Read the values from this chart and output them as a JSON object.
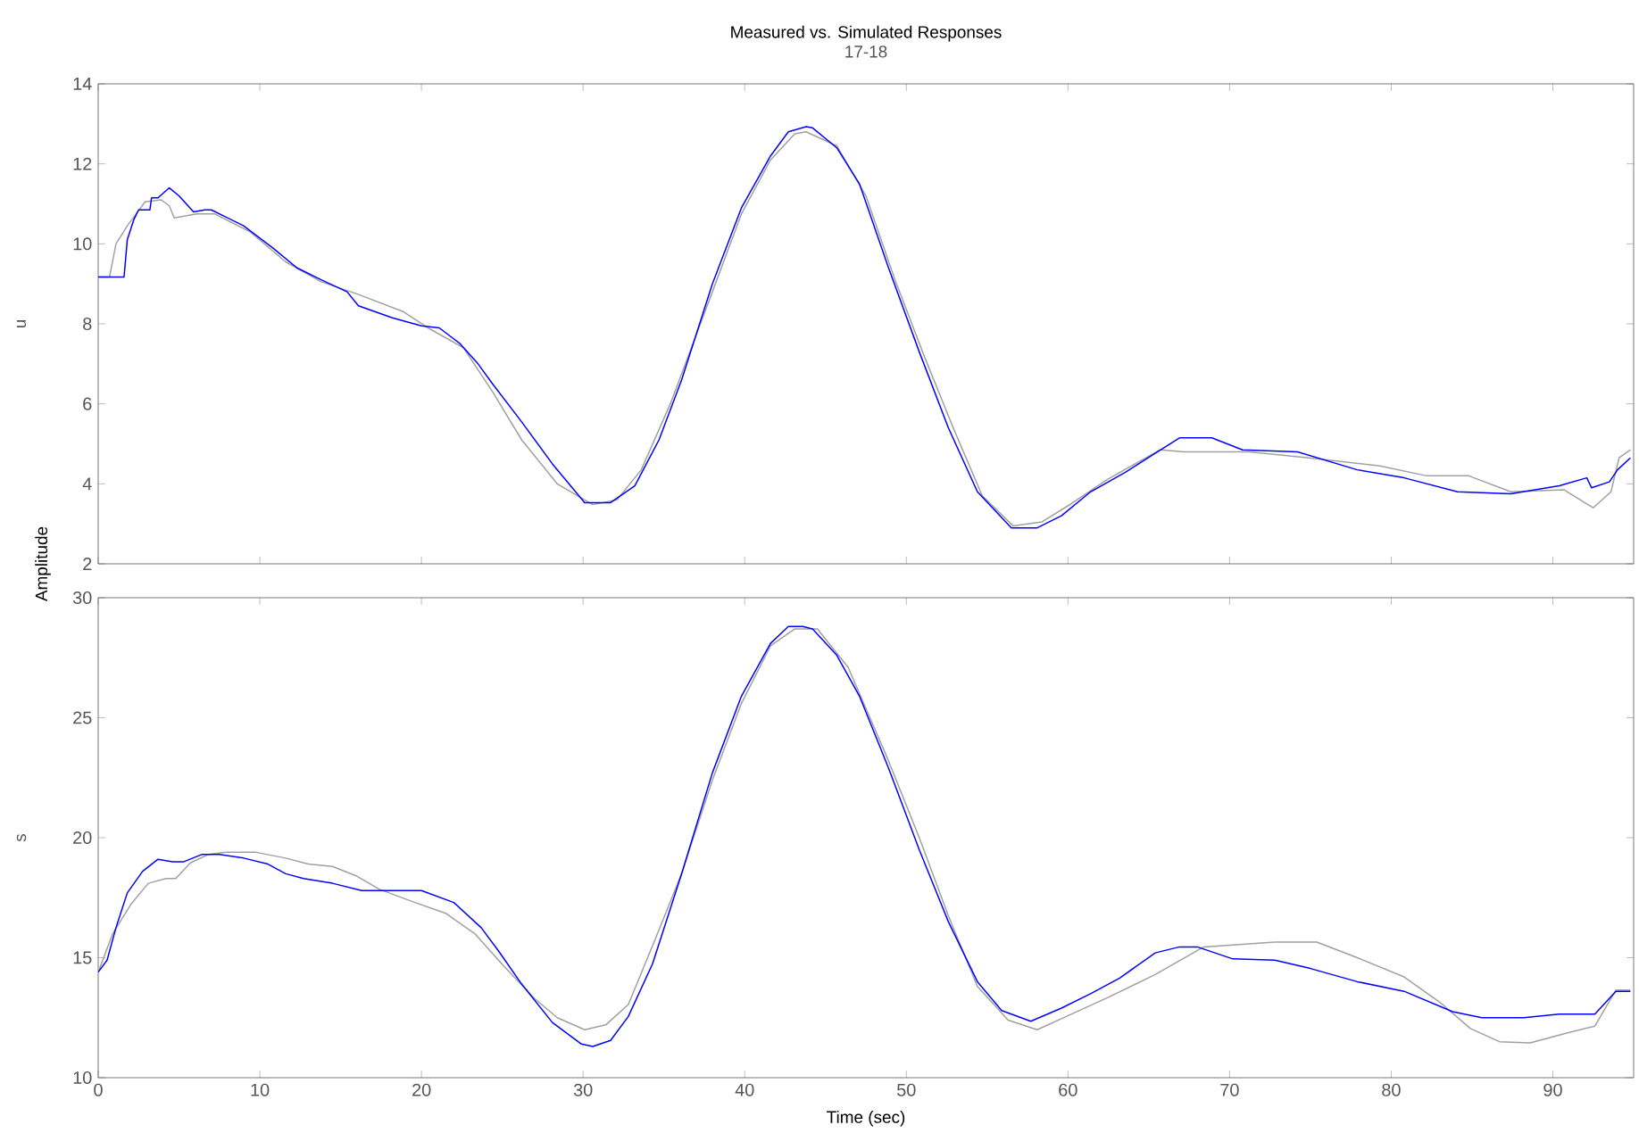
{
  "chart_data": [
    {
      "type": "line",
      "title": "Measured vs. Simulated Responses",
      "subtitle": "17-18",
      "ylabel": "u",
      "annotations": [
        "Amplitude"
      ],
      "xlim": [
        0,
        95
      ],
      "xticks": [
        0,
        10,
        20,
        30,
        40,
        50,
        60,
        70,
        80,
        90
      ],
      "ylim": [
        2,
        14
      ],
      "yticks": [
        2,
        4,
        6,
        8,
        10,
        12,
        14
      ],
      "tick_labels": "y",
      "line_style": "solid",
      "marker": "none",
      "series": [
        {
          "color": "#a0a0a0",
          "x": [
            0,
            0.7,
            1.1,
            1.8,
            2.9,
            3.9,
            4.4,
            4.7,
            6.1,
            7.2,
            9.4,
            11.6,
            13.8,
            16,
            18.9,
            20.4,
            22.6,
            24.4,
            26.2,
            28.4,
            30.6,
            32.1,
            33.6,
            35.4,
            38,
            39.8,
            41.6,
            43.1,
            43.8,
            45.7,
            47.5,
            49.3,
            51.1,
            52.9,
            54.7,
            56.6,
            58.4,
            60.2,
            62.4,
            65.7,
            67.2,
            71.2,
            74.9,
            79.3,
            82.2,
            84.8,
            87.4,
            90.7,
            92.5,
            93.6,
            94.1,
            94.8
          ],
          "values": [
            9.17,
            9.17,
            10.0,
            10.45,
            11.05,
            11.1,
            10.95,
            10.65,
            10.75,
            10.75,
            10.3,
            9.55,
            9.05,
            8.75,
            8.3,
            7.9,
            7.4,
            6.3,
            5.1,
            4.0,
            3.48,
            3.6,
            4.35,
            6.0,
            8.8,
            10.75,
            12.1,
            12.75,
            12.8,
            12.45,
            11.2,
            9.1,
            7.2,
            5.4,
            3.7,
            2.95,
            3.05,
            3.5,
            4.1,
            4.85,
            4.8,
            4.8,
            4.65,
            4.45,
            4.2,
            4.2,
            3.8,
            3.85,
            3.4,
            3.8,
            4.65,
            4.85
          ]
        },
        {
          "color": "#0000ff",
          "x": [
            0,
            1.6,
            1.8,
            2.2,
            2.5,
            3.2,
            3.3,
            3.7,
            4.4,
            5,
            5.9,
            6.6,
            7.0,
            9,
            10.8,
            12.3,
            13.8,
            15.4,
            16.1,
            18.2,
            20,
            21.1,
            22.4,
            23.5,
            24.4,
            26.2,
            28.1,
            30.1,
            31.7,
            33.2,
            34.7,
            36.1,
            38,
            39.8,
            41.6,
            42.7,
            43.8,
            44.2,
            45.7,
            47.1,
            48.9,
            50.8,
            52.6,
            54.4,
            56.5,
            58.1,
            59.6,
            61.4,
            63.6,
            66.9,
            68.9,
            70.8,
            74.2,
            77.9,
            80.8,
            84.1,
            87.4,
            90.4,
            92.1,
            92.4,
            93.5,
            94,
            94.8
          ],
          "values": [
            9.17,
            9.17,
            10.1,
            10.6,
            10.85,
            10.85,
            11.15,
            11.15,
            11.4,
            11.2,
            10.8,
            10.85,
            10.85,
            10.45,
            9.9,
            9.4,
            9.1,
            8.8,
            8.45,
            8.15,
            7.95,
            7.9,
            7.5,
            7.0,
            6.5,
            5.55,
            4.5,
            3.53,
            3.53,
            3.95,
            5.1,
            6.6,
            9.0,
            10.9,
            12.2,
            12.8,
            12.93,
            12.9,
            12.4,
            11.5,
            9.4,
            7.3,
            5.4,
            3.8,
            2.9,
            2.9,
            3.2,
            3.8,
            4.3,
            5.15,
            5.15,
            4.85,
            4.8,
            4.35,
            4.15,
            3.8,
            3.75,
            3.95,
            4.15,
            3.9,
            4.05,
            4.35,
            4.65
          ]
        }
      ]
    },
    {
      "type": "line",
      "xlabel": "Time (sec)",
      "ylabel": "s",
      "xlim": [
        0,
        95
      ],
      "xticks": [
        0,
        10,
        20,
        30,
        40,
        50,
        60,
        70,
        80,
        90
      ],
      "ylim": [
        10,
        30
      ],
      "yticks": [
        10,
        15,
        20,
        25,
        30
      ],
      "line_style": "solid",
      "marker": "none",
      "series": [
        {
          "color": "#a0a0a0",
          "x": [
            0,
            0.9,
            2,
            3.1,
            4.2,
            4.8,
            5.7,
            6.8,
            7.9,
            9.7,
            11.6,
            13,
            14.5,
            16,
            17.4,
            19.6,
            21.5,
            23.3,
            25.1,
            27,
            28.4,
            30.1,
            31.4,
            32.8,
            34.3,
            36.1,
            38,
            39.8,
            41.6,
            43.1,
            44.5,
            46.4,
            48.9,
            50.8,
            52.6,
            54.4,
            56.3,
            58.1,
            59.9,
            62.5,
            65.4,
            68.4,
            70.6,
            72.8,
            75.4,
            77.9,
            80.8,
            83,
            84.9,
            86.7,
            88.6,
            90.8,
            92.6,
            93.9,
            94.8
          ],
          "values": [
            14.4,
            16.0,
            17.2,
            18.1,
            18.3,
            18.3,
            18.95,
            19.3,
            19.4,
            19.4,
            19.15,
            18.9,
            18.8,
            18.4,
            17.85,
            17.3,
            16.85,
            16.0,
            14.65,
            13.3,
            12.5,
            12.0,
            12.2,
            13.05,
            15.5,
            18.5,
            22.4,
            25.6,
            28.0,
            28.7,
            28.7,
            27.1,
            23.2,
            20.0,
            16.75,
            13.8,
            12.4,
            12.0,
            12.55,
            13.35,
            14.3,
            15.45,
            15.55,
            15.65,
            15.65,
            15.0,
            14.2,
            13.15,
            12.05,
            11.5,
            11.45,
            11.85,
            12.15,
            13.65,
            13.65
          ]
        },
        {
          "color": "#0000ff",
          "x": [
            0,
            0.55,
            1.1,
            1.8,
            2.75,
            3.7,
            4.6,
            5.3,
            6.4,
            7.5,
            9,
            10.5,
            11.6,
            12.7,
            14.5,
            16.3,
            20,
            22,
            23.7,
            24.8,
            26.2,
            28.1,
            29.9,
            30.6,
            31.7,
            32.8,
            34.3,
            36.1,
            38,
            39.8,
            41.6,
            42.7,
            43.6,
            44.2,
            45.7,
            47.1,
            48.9,
            50.8,
            52.6,
            54.4,
            55.9,
            57.7,
            59.6,
            61.4,
            63.2,
            65.4,
            66.9,
            68,
            70.2,
            72.8,
            75,
            77.9,
            80.8,
            83.8,
            85.6,
            88.2,
            90.4,
            92.6,
            93.9,
            94.8
          ],
          "values": [
            14.4,
            14.9,
            16.25,
            17.7,
            18.6,
            19.1,
            19.0,
            19.0,
            19.3,
            19.3,
            19.15,
            18.9,
            18.5,
            18.3,
            18.1,
            17.8,
            17.8,
            17.3,
            16.25,
            15.25,
            13.9,
            12.3,
            11.4,
            11.3,
            11.55,
            12.55,
            14.75,
            18.5,
            22.7,
            25.9,
            28.1,
            28.8,
            28.8,
            28.7,
            27.6,
            25.9,
            22.9,
            19.5,
            16.5,
            14.0,
            12.8,
            12.35,
            12.9,
            13.5,
            14.15,
            15.2,
            15.45,
            15.45,
            14.95,
            14.9,
            14.55,
            14.0,
            13.6,
            12.75,
            12.5,
            12.5,
            12.65,
            12.65,
            13.6,
            13.6
          ]
        }
      ]
    }
  ]
}
